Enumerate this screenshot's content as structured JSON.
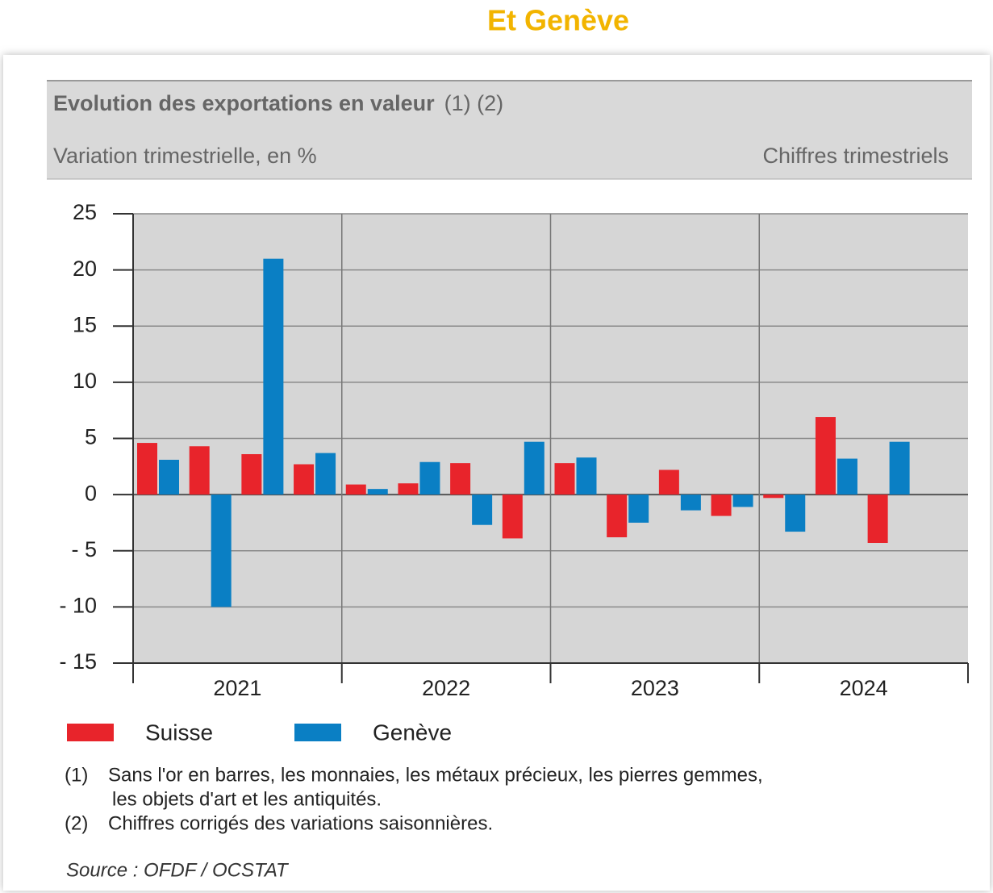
{
  "page_title": "Et Genève",
  "chart_data": {
    "type": "bar",
    "title": "Evolution des exportations en valeur",
    "title_refs": "(1) (2)",
    "subtitle": "Variation trimestrielle, en %",
    "subtitle_right": "Chiffres trimestriels",
    "categories": [
      null,
      null,
      null,
      null,
      null,
      null,
      null,
      null,
      null,
      null,
      null,
      null,
      null,
      null,
      null,
      null
    ],
    "groups": [
      "2021",
      "2022",
      "2023",
      "2024"
    ],
    "series": [
      {
        "name": "Suisse",
        "color": "#e8242b",
        "values": [
          4.6,
          4.3,
          3.6,
          2.7,
          0.9,
          1.0,
          2.8,
          -3.9,
          2.8,
          -3.8,
          2.2,
          -1.9,
          -0.3,
          6.9,
          -4.3,
          null
        ]
      },
      {
        "name": "Genève",
        "color": "#0a7fc4",
        "values": [
          3.1,
          -10,
          21,
          3.7,
          0.5,
          2.9,
          -2.7,
          4.7,
          3.3,
          -2.5,
          -1.4,
          -1.1,
          -3.3,
          3.2,
          4.7,
          null
        ]
      }
    ],
    "ylim": [
      -15,
      25
    ],
    "yticks": [
      {
        "value": -15,
        "label": "- 15"
      },
      {
        "value": -10,
        "label": "- 10"
      },
      {
        "value": -5,
        "label": "- 5"
      },
      0,
      5,
      10,
      15,
      20,
      25
    ],
    "grid": true,
    "notes": [
      {
        "marker": "(1)",
        "lines": [
          "Sans l'or en barres, les monnaies, les métaux précieux, les pierres gemmes,",
          "les objets d'art et les antiquités."
        ]
      },
      {
        "marker": "(2)",
        "lines": [
          "Chiffres corrigés des variations saisonnières."
        ]
      }
    ],
    "source": "Source : OFDF / OCSTAT"
  }
}
